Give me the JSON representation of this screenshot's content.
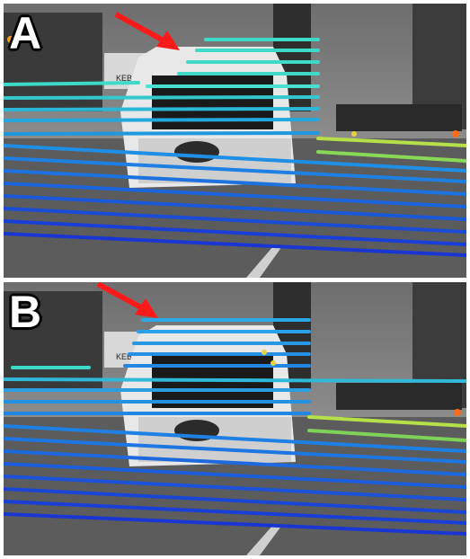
{
  "panels": [
    {
      "label": "A",
      "sign_text": "KEBAB"
    },
    {
      "label": "B",
      "sign_text": "KEBAB"
    }
  ],
  "colors": {
    "arrow": "#ff1a1a",
    "near_lidar": "#1a3fd6",
    "mid_lidar": "#1f8fe6",
    "far_lidar": "#3fd9c8",
    "bright_lidar": "#b6e04a",
    "hot_lidar": "#ff6a1a"
  }
}
